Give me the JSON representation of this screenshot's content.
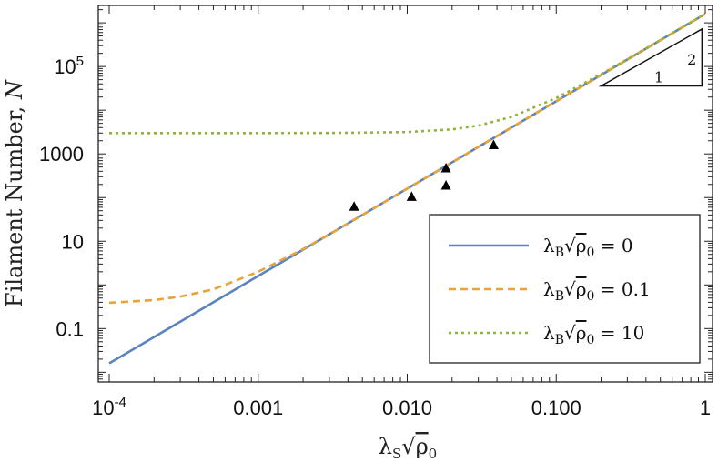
{
  "chart_data": {
    "type": "line",
    "xlabel": "λS√ρ0",
    "ylabel": "Filament Number, N",
    "x_scale": "log",
    "y_scale": "log",
    "xlim": [
      0.0001,
      1
    ],
    "ylim": [
      0.006,
      2500000
    ],
    "x_ticks": [
      {
        "value": 0.0001,
        "label": "10",
        "sup": "-4"
      },
      {
        "value": 0.001,
        "label": "0.001",
        "sup": ""
      },
      {
        "value": 0.01,
        "label": "0.010",
        "sup": ""
      },
      {
        "value": 0.1,
        "label": "0.100",
        "sup": ""
      },
      {
        "value": 1,
        "label": "1",
        "sup": ""
      }
    ],
    "y_ticks": [
      {
        "value": 0.1,
        "label": "0.1",
        "sup": ""
      },
      {
        "value": 10,
        "label": "10",
        "sup": ""
      },
      {
        "value": 1000,
        "label": "1000",
        "sup": ""
      },
      {
        "value": 100000,
        "label": "10",
        "sup": "5"
      }
    ],
    "series": [
      {
        "name": "λB√ρ0 = 0",
        "color": "#5b83bd",
        "style": "solid",
        "x": [
          0.0001,
          0.0003,
          0.001,
          0.003,
          0.01,
          0.03,
          0.1,
          0.3,
          1
        ],
        "y": [
          0.016,
          0.144,
          1.6,
          14.4,
          160,
          1440,
          16000,
          144000,
          1600000
        ]
      },
      {
        "name": "λB√ρ0 = 0.1",
        "color": "#e8a33a",
        "style": "dashed",
        "x": [
          0.0001,
          0.0002,
          0.0003,
          0.0005,
          0.001,
          0.002,
          0.003,
          0.005,
          0.01,
          0.03,
          0.1,
          0.3,
          1
        ],
        "y": [
          0.39,
          0.45,
          0.54,
          0.79,
          2.0,
          6.6,
          14.4,
          40,
          160,
          1440,
          16000,
          144000,
          1600000
        ]
      },
      {
        "name": "λB√ρ0 = 10",
        "color": "#8db43c",
        "style": "dotted",
        "x": [
          0.0001,
          0.001,
          0.003,
          0.01,
          0.02,
          0.03,
          0.05,
          0.1,
          0.2,
          0.3,
          0.5,
          1
        ],
        "y": [
          3000,
          3000,
          3015,
          3160,
          3640,
          4440,
          7000,
          19000,
          67000,
          147000,
          403000,
          1600000
        ]
      }
    ],
    "markers": {
      "name": "data",
      "shape": "triangle",
      "color": "#000000",
      "x": [
        0.0044,
        0.0107,
        0.0182,
        0.0182,
        0.038
      ],
      "y": [
        62,
        104,
        470,
        188,
        1590
      ]
    },
    "slope_triangle": {
      "run_label": "1",
      "rise_label": "2",
      "x": [
        0.2,
        0.95
      ],
      "y": [
        36000,
        720000
      ]
    },
    "legend": {
      "position": "bottom-right",
      "entries": [
        {
          "prefix": "λ",
          "sub": "B",
          "rho": "ρ",
          "rho_sub": "0",
          "value": "= 0"
        },
        {
          "prefix": "λ",
          "sub": "B",
          "rho": "ρ",
          "rho_sub": "0",
          "value": "= 0.1"
        },
        {
          "prefix": "λ",
          "sub": "B",
          "rho": "ρ",
          "rho_sub": "0",
          "value": "= 10"
        }
      ]
    },
    "grid": false
  }
}
